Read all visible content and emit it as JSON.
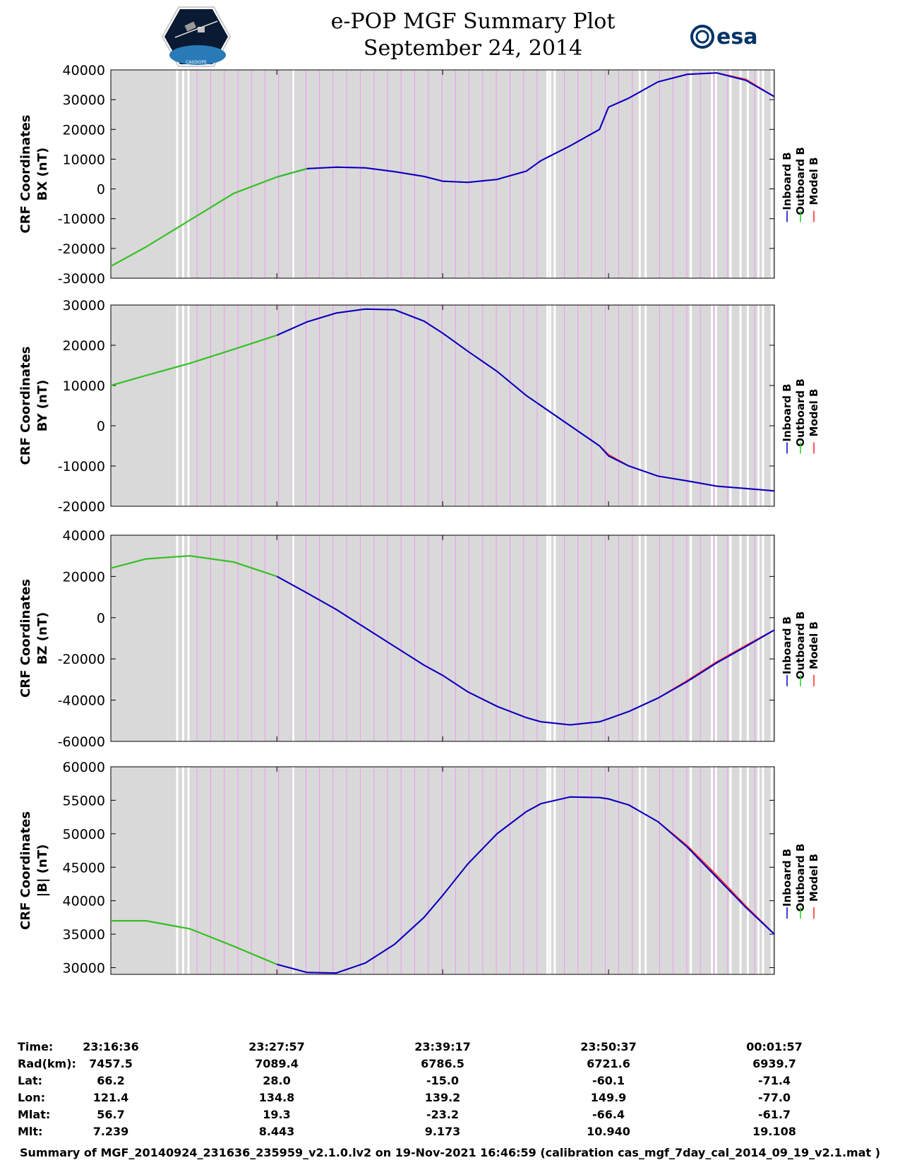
{
  "header": {
    "title_line1": "e-POP MGF Summary Plot",
    "title_line2": "September 24, 2014",
    "left_logo_icon": "cassiope-satellite-logo-icon",
    "left_logo_text": "CASSIOPE",
    "right_logo_icon": "esa-logo-icon",
    "right_logo_text": "esa"
  },
  "colors": {
    "inboard": "#0000cc",
    "outboard": "#22cc22",
    "model": "#ff2222",
    "background_band": "#d9d9d9",
    "magenta_line": "#ee99ee"
  },
  "chart_data": [
    {
      "type": "line",
      "ylabel_line1": "CRF Coordinates",
      "ylabel_line2": "BX (nT)",
      "ylim": [
        -30000,
        40000
      ],
      "yticks": [
        -30000,
        -20000,
        -10000,
        0,
        10000,
        20000,
        30000,
        40000
      ],
      "ytick_labels": [
        "-30000",
        "-20000",
        "-10000",
        "0",
        "10000",
        "20000",
        "30000",
        "40000"
      ],
      "legend": [
        "Inboard B",
        "Outboard B",
        "Model B"
      ],
      "legend_position": "right",
      "x": [
        "23:16:36",
        "23:19:00",
        "23:22:00",
        "23:25:00",
        "23:27:57",
        "23:30:00",
        "23:32:00",
        "23:34:00",
        "23:36:00",
        "23:38:00",
        "23:39:17",
        "23:41:00",
        "23:43:00",
        "23:45:00",
        "23:46:00",
        "23:48:00",
        "23:50:00",
        "23:50:37",
        "23:52:00",
        "23:54:00",
        "23:56:00",
        "23:58:00",
        "00:00:00",
        "00:01:57"
      ],
      "series": [
        {
          "name": "Inboard B",
          "values": [
            -26000,
            -19500,
            -10500,
            -1500,
            4000,
            6800,
            7300,
            7100,
            5800,
            4200,
            2600,
            2200,
            3200,
            6000,
            9500,
            14500,
            20000,
            27500,
            30500,
            36000,
            38500,
            39000,
            36500,
            31000
          ]
        },
        {
          "name": "Outboard B",
          "values": [
            -26000,
            -19500,
            -10500,
            -1500,
            4000,
            6800,
            7300,
            7100,
            5800,
            4200,
            2600,
            2200,
            3200,
            6000,
            9500,
            14500,
            20000,
            27500,
            30500,
            36000,
            38500,
            39000,
            36500,
            31000
          ]
        },
        {
          "name": "Model B",
          "values": [
            -26000,
            -19500,
            -10500,
            -1500,
            4000,
            6800,
            7300,
            7100,
            5800,
            4200,
            2600,
            2200,
            3200,
            6000,
            9500,
            14500,
            20000,
            27500,
            30500,
            36000,
            38500,
            39000,
            36800,
            31000
          ]
        }
      ]
    },
    {
      "type": "line",
      "ylabel_line1": "CRF Coordinates",
      "ylabel_line2": "BY (nT)",
      "ylim": [
        -20000,
        30000
      ],
      "yticks": [
        -20000,
        -10000,
        0,
        10000,
        20000,
        30000
      ],
      "ytick_labels": [
        "-20000",
        "-10000",
        "0",
        "10000",
        "20000",
        "30000"
      ],
      "legend": [
        "Inboard B",
        "Outboard B",
        "Model B"
      ],
      "legend_position": "right",
      "x": [
        "23:16:36",
        "23:19:00",
        "23:22:00",
        "23:25:00",
        "23:27:57",
        "23:30:00",
        "23:32:00",
        "23:34:00",
        "23:36:00",
        "23:38:00",
        "23:39:17",
        "23:41:00",
        "23:43:00",
        "23:45:00",
        "23:46:00",
        "23:48:00",
        "23:50:00",
        "23:50:37",
        "23:52:00",
        "23:54:00",
        "23:56:00",
        "23:58:00",
        "00:00:00",
        "00:01:57"
      ],
      "series": [
        {
          "name": "Inboard B",
          "values": [
            10000,
            12500,
            15500,
            19000,
            22500,
            25800,
            28000,
            29000,
            28800,
            26000,
            23000,
            18500,
            13500,
            7500,
            5000,
            0,
            -5000,
            -7500,
            -10000,
            -12500,
            -13700,
            -15000,
            -15600,
            -16200
          ]
        },
        {
          "name": "Outboard B",
          "values": [
            10000,
            12500,
            15500,
            19000,
            22500,
            25800,
            28000,
            29000,
            28800,
            26000,
            23000,
            18500,
            13500,
            7500,
            5000,
            0,
            -5000,
            -7500,
            -10000,
            -12500,
            -13700,
            -15000,
            -15600,
            -16200
          ]
        },
        {
          "name": "Model B",
          "values": [
            10000,
            12500,
            15500,
            19000,
            22500,
            25800,
            28000,
            29000,
            28800,
            26000,
            23000,
            18500,
            13500,
            7500,
            5000,
            0,
            -5000,
            -7200,
            -10000,
            -12500,
            -13700,
            -15000,
            -15600,
            -16200
          ]
        }
      ]
    },
    {
      "type": "line",
      "ylabel_line1": "CRF Coordinates",
      "ylabel_line2": "BZ (nT)",
      "ylim": [
        -60000,
        40000
      ],
      "yticks": [
        -60000,
        -40000,
        -20000,
        0,
        20000,
        40000
      ],
      "ytick_labels": [
        "-60000",
        "-40000",
        "-20000",
        "0",
        "20000",
        "40000"
      ],
      "legend": [
        "Inboard B",
        "Outboard B",
        "Model B"
      ],
      "legend_position": "right",
      "x": [
        "23:16:36",
        "23:19:00",
        "23:22:00",
        "23:25:00",
        "23:27:57",
        "23:30:00",
        "23:32:00",
        "23:34:00",
        "23:36:00",
        "23:38:00",
        "23:39:17",
        "23:41:00",
        "23:43:00",
        "23:45:00",
        "23:46:00",
        "23:48:00",
        "23:50:00",
        "23:50:37",
        "23:52:00",
        "23:54:00",
        "23:56:00",
        "23:58:00",
        "00:00:00",
        "00:01:57"
      ],
      "series": [
        {
          "name": "Inboard B",
          "values": [
            24000,
            28500,
            30000,
            27000,
            20000,
            12000,
            4000,
            -5000,
            -14000,
            -23000,
            -28000,
            -36000,
            -43000,
            -48500,
            -50500,
            -52000,
            -50500,
            -49000,
            -45500,
            -39000,
            -31000,
            -22000,
            -14000,
            -6000
          ]
        },
        {
          "name": "Outboard B",
          "values": [
            24000,
            28500,
            30000,
            27000,
            20000,
            12000,
            4000,
            -5000,
            -14000,
            -23000,
            -28000,
            -36000,
            -43000,
            -48500,
            -50500,
            -52000,
            -50500,
            -49000,
            -45500,
            -39000,
            -31000,
            -22000,
            -14000,
            -6000
          ]
        },
        {
          "name": "Model B",
          "values": [
            24000,
            28500,
            30000,
            27000,
            20000,
            12000,
            4000,
            -5000,
            -14000,
            -23000,
            -28000,
            -36000,
            -43000,
            -48500,
            -50500,
            -52000,
            -50500,
            -49000,
            -45500,
            -39000,
            -30500,
            -21500,
            -13500,
            -6000
          ]
        }
      ]
    },
    {
      "type": "line",
      "ylabel_line1": "CRF Coordinates",
      "ylabel_line2": "|B| (nT)",
      "ylim": [
        29000,
        60000
      ],
      "yticks": [
        30000,
        35000,
        40000,
        45000,
        50000,
        55000,
        60000
      ],
      "ytick_labels": [
        "30000",
        "35000",
        "40000",
        "45000",
        "50000",
        "55000",
        "60000"
      ],
      "legend": [
        "Inboard B",
        "Outboard B",
        "Model B"
      ],
      "legend_position": "right",
      "x": [
        "23:16:36",
        "23:19:00",
        "23:22:00",
        "23:25:00",
        "23:27:57",
        "23:30:00",
        "23:32:00",
        "23:34:00",
        "23:36:00",
        "23:38:00",
        "23:39:17",
        "23:41:00",
        "23:43:00",
        "23:45:00",
        "23:46:00",
        "23:48:00",
        "23:50:00",
        "23:50:37",
        "23:52:00",
        "23:54:00",
        "23:56:00",
        "23:58:00",
        "00:00:00",
        "00:01:57"
      ],
      "series": [
        {
          "name": "Inboard B",
          "values": [
            37000,
            37000,
            35800,
            33200,
            30500,
            29300,
            29200,
            30700,
            33500,
            37500,
            40800,
            45500,
            50000,
            53300,
            54500,
            55500,
            55400,
            55200,
            54300,
            51800,
            48000,
            43500,
            39000,
            35000
          ]
        },
        {
          "name": "Outboard B",
          "values": [
            37000,
            37000,
            35800,
            33200,
            30500,
            29300,
            29200,
            30700,
            33500,
            37500,
            40800,
            45500,
            50000,
            53300,
            54500,
            55500,
            55400,
            55200,
            54300,
            51800,
            48000,
            43500,
            39000,
            35000
          ]
        },
        {
          "name": "Model B",
          "values": [
            37000,
            37000,
            35800,
            33200,
            30500,
            29300,
            29200,
            30700,
            33500,
            37500,
            40800,
            45500,
            50000,
            53300,
            54500,
            55500,
            55400,
            55200,
            54300,
            51800,
            48200,
            43800,
            39200,
            35000
          ]
        }
      ]
    }
  ],
  "xticks": [
    "23:16:36",
    "23:27:57",
    "23:39:17",
    "23:50:37",
    "00:01:57"
  ],
  "footer": {
    "rows": [
      {
        "label": "Time:",
        "values": [
          "23:16:36",
          "23:27:57",
          "23:39:17",
          "23:50:37",
          "00:01:57"
        ]
      },
      {
        "label": "Rad(km):",
        "values": [
          "7457.5",
          "7089.4",
          "6786.5",
          "6721.6",
          "6939.7"
        ]
      },
      {
        "label": "Lat:",
        "values": [
          "66.2",
          "28.0",
          "-15.0",
          "-60.1",
          "-71.4"
        ]
      },
      {
        "label": "Lon:",
        "values": [
          "121.4",
          "134.8",
          "139.2",
          "149.9",
          "-77.0"
        ]
      },
      {
        "label": "Mlat:",
        "values": [
          "56.7",
          "19.3",
          "-23.2",
          "-66.4",
          "-61.7"
        ]
      },
      {
        "label": "Mlt:",
        "values": [
          "7.239",
          "8.443",
          "9.173",
          "10.940",
          "19.108"
        ]
      }
    ],
    "note": "Summary of MGF_20140924_231636_235959_v2.1.0.lv2 on 19-Nov-2021 16:46:59 (calibration cas_mgf_7day_cal_2014_09_19_v2.1.mat )"
  }
}
